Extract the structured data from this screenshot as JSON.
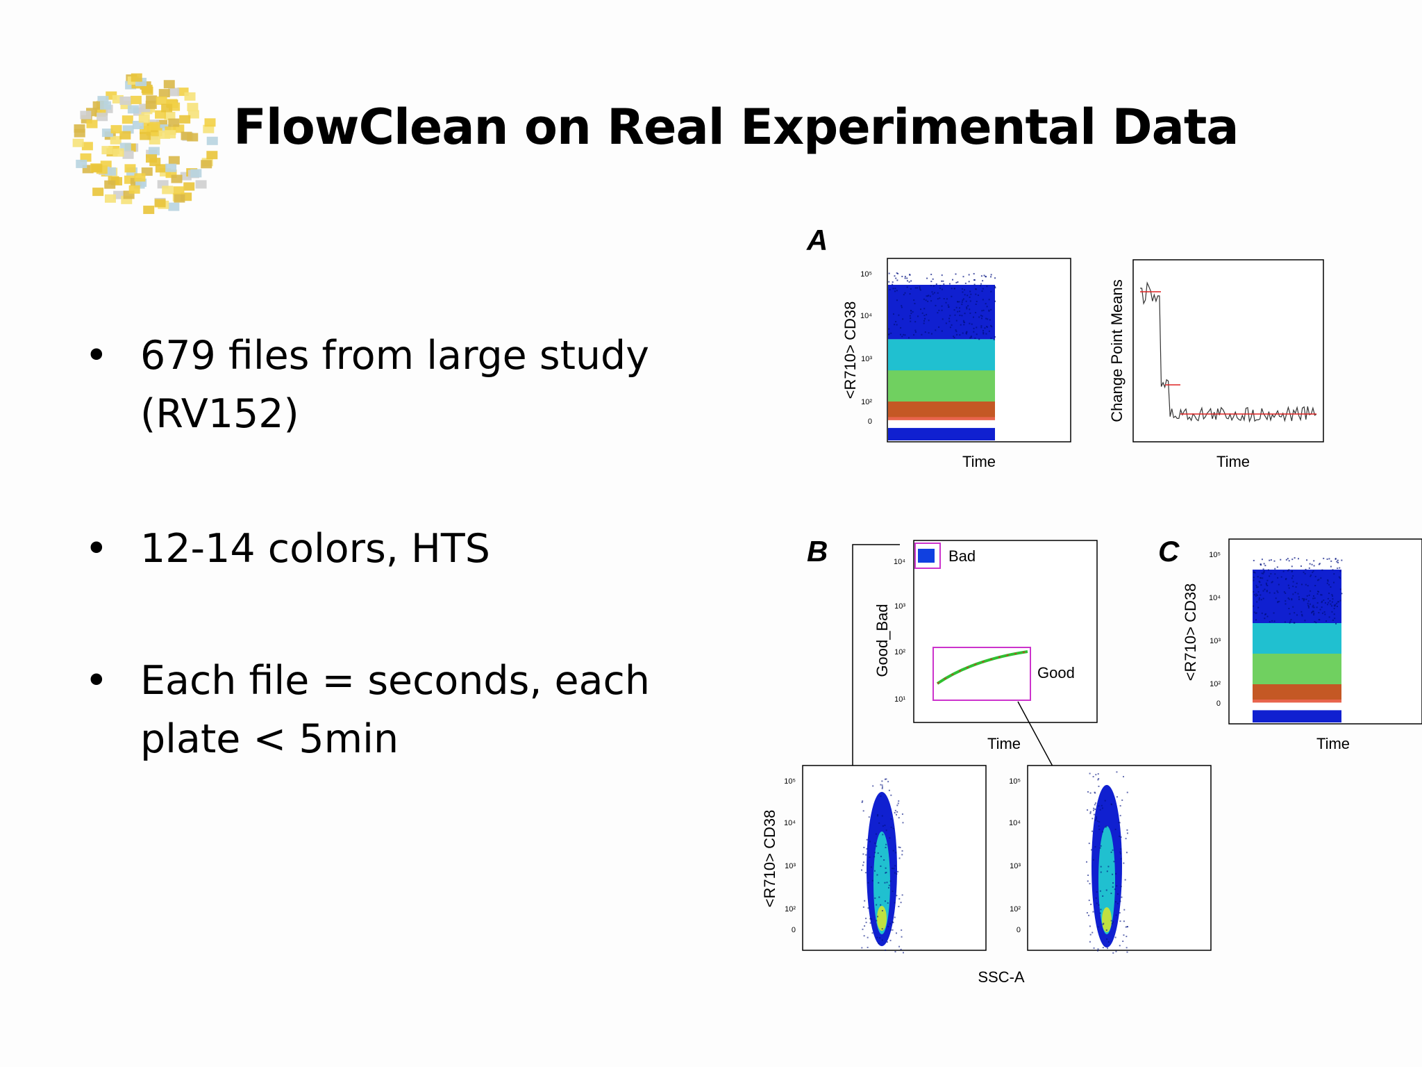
{
  "slide": {
    "title": "FlowClean on Real Experimental Data",
    "bullets": [
      {
        "text": "679 files from large study (RV152)"
      },
      {
        "text": "12-14 colors, HTS"
      },
      {
        "text": "Each file = seconds, each plate < 5min"
      }
    ],
    "bullet_glyph": "•"
  },
  "figure": {
    "panels": [
      {
        "id": "A",
        "letter": "A"
      },
      {
        "id": "B",
        "letter": "B"
      },
      {
        "id": "C",
        "letter": "C"
      }
    ],
    "labels": {
      "cd38": "<R710> CD38",
      "time": "Time",
      "cpm": "Change Point Means",
      "good_bad": "Good_Bad",
      "bad": "Bad",
      "good": "Good",
      "ssc": "SSC-A"
    },
    "ticks": {
      "t105": "10⁵",
      "t104": "10⁴",
      "t103": "10³",
      "t102": "10²",
      "t101": "10¹",
      "t0": "0"
    },
    "colors": {
      "density_low": "#1020d0",
      "density_mid": "#20c0d0",
      "density_high": "#e03010",
      "gate": "#cc33cc",
      "changepoint": "#dd2222"
    }
  }
}
